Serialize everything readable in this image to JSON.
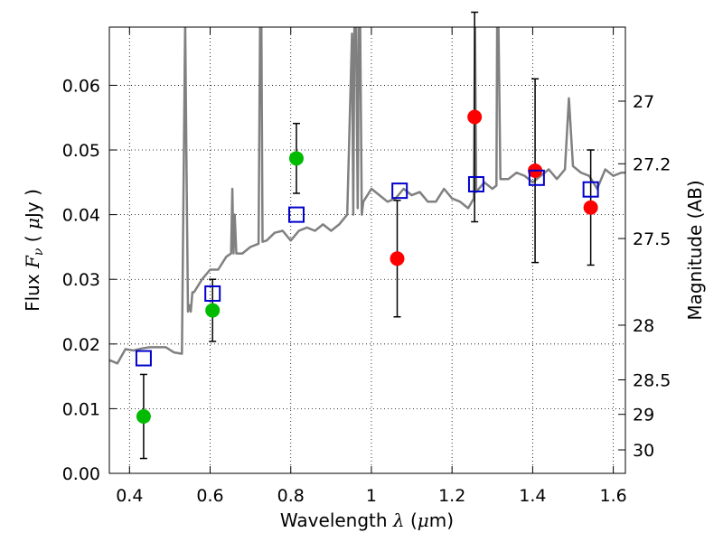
{
  "chart_data": {
    "type": "scatter",
    "xlabel": "Wavelength  λ (μm)",
    "ylabel": "Flux  F_ν  ( μJy )",
    "ylabel_right": "Magnitude (AB)",
    "xlim": [
      0.35,
      1.63
    ],
    "ylim": [
      0.0,
      0.069
    ],
    "grid": true,
    "x_ticks": [
      {
        "value": 0.4,
        "label": "0.4"
      },
      {
        "value": 0.6,
        "label": "0.6"
      },
      {
        "value": 0.8,
        "label": "0.8"
      },
      {
        "value": 1.0,
        "label": "1"
      },
      {
        "value": 1.2,
        "label": "1.2"
      },
      {
        "value": 1.4,
        "label": "1.4"
      },
      {
        "value": 1.6,
        "label": "1.6"
      }
    ],
    "y_ticks": [
      {
        "value": 0.0,
        "label": "0.00"
      },
      {
        "value": 0.01,
        "label": "0.01"
      },
      {
        "value": 0.02,
        "label": "0.02"
      },
      {
        "value": 0.03,
        "label": "0.03"
      },
      {
        "value": 0.04,
        "label": "0.04"
      },
      {
        "value": 0.05,
        "label": "0.05"
      },
      {
        "value": 0.06,
        "label": "0.06"
      }
    ],
    "right_ticks": [
      {
        "mag": 27.0,
        "label": "27"
      },
      {
        "mag": 27.2,
        "label": "27.2"
      },
      {
        "mag": 27.5,
        "label": "27.5"
      },
      {
        "mag": 28.0,
        "label": "28"
      },
      {
        "mag": 28.5,
        "label": "28.5"
      },
      {
        "mag": 29.0,
        "label": "29"
      },
      {
        "mag": 30.0,
        "label": "30"
      }
    ],
    "series": [
      {
        "kind": "observed-optical",
        "color": "#00bb00",
        "points": [
          {
            "x": 0.435,
            "y": 0.0088,
            "err": 0.0065
          },
          {
            "x": 0.606,
            "y": 0.0252,
            "err": 0.0048
          },
          {
            "x": 0.814,
            "y": 0.0487,
            "err": 0.0054
          }
        ]
      },
      {
        "kind": "observed-infrared",
        "color": "#ff0000",
        "points": [
          {
            "x": 1.064,
            "y": 0.0332,
            "err": 0.009
          },
          {
            "x": 1.256,
            "y": 0.0551,
            "err": 0.0162
          },
          {
            "x": 1.406,
            "y": 0.0468,
            "err": 0.0142
          },
          {
            "x": 1.544,
            "y": 0.0411,
            "err": 0.0089
          }
        ]
      },
      {
        "kind": "model-photometry",
        "color": "#0000cc",
        "points": [
          {
            "x": 0.435,
            "y": 0.0178
          },
          {
            "x": 0.606,
            "y": 0.0278
          },
          {
            "x": 0.814,
            "y": 0.04
          },
          {
            "x": 1.07,
            "y": 0.0437
          },
          {
            "x": 1.26,
            "y": 0.0447
          },
          {
            "x": 1.41,
            "y": 0.0457
          },
          {
            "x": 1.544,
            "y": 0.0439
          }
        ]
      },
      {
        "kind": "model-spectrum",
        "color": "#808080",
        "x": [
          0.35,
          0.37,
          0.39,
          0.41,
          0.43,
          0.45,
          0.47,
          0.49,
          0.51,
          0.53,
          0.538,
          0.541,
          0.545,
          0.549,
          0.552,
          0.556,
          0.56,
          0.58,
          0.6,
          0.62,
          0.64,
          0.652,
          0.655,
          0.658,
          0.661,
          0.665,
          0.68,
          0.7,
          0.72,
          0.724,
          0.727,
          0.73,
          0.74,
          0.76,
          0.78,
          0.8,
          0.82,
          0.84,
          0.86,
          0.88,
          0.9,
          0.92,
          0.94,
          0.952,
          0.955,
          0.958,
          0.962,
          0.966,
          0.969,
          0.972,
          0.976,
          0.98,
          1.0,
          1.02,
          1.04,
          1.06,
          1.08,
          1.1,
          1.12,
          1.14,
          1.16,
          1.18,
          1.2,
          1.22,
          1.24,
          1.254,
          1.257,
          1.26,
          1.28,
          1.3,
          1.31,
          1.312,
          1.315,
          1.32,
          1.34,
          1.36,
          1.38,
          1.4,
          1.42,
          1.44,
          1.46,
          1.48,
          1.49,
          1.5,
          1.52,
          1.54,
          1.56,
          1.58,
          1.6,
          1.62,
          1.63
        ],
        "y": [
          0.0175,
          0.017,
          0.0192,
          0.019,
          0.0193,
          0.0195,
          0.0195,
          0.0195,
          0.0187,
          0.0185,
          0.07,
          0.05,
          0.025,
          0.026,
          0.025,
          0.028,
          0.028,
          0.03,
          0.0315,
          0.0315,
          0.0335,
          0.034,
          0.044,
          0.034,
          0.04,
          0.034,
          0.034,
          0.035,
          0.0355,
          0.07,
          0.07,
          0.0358,
          0.036,
          0.0372,
          0.0375,
          0.036,
          0.0375,
          0.038,
          0.0375,
          0.0385,
          0.0375,
          0.0385,
          0.04,
          0.068,
          0.04,
          0.07,
          0.07,
          0.041,
          0.07,
          0.07,
          0.04,
          0.042,
          0.044,
          0.043,
          0.042,
          0.0425,
          0.044,
          0.043,
          0.0435,
          0.042,
          0.042,
          0.044,
          0.0425,
          0.042,
          0.041,
          0.0425,
          0.07,
          0.0435,
          0.045,
          0.044,
          0.0445,
          0.07,
          0.07,
          0.0455,
          0.0455,
          0.0465,
          0.046,
          0.045,
          0.046,
          0.047,
          0.0455,
          0.047,
          0.058,
          0.0475,
          0.0465,
          0.046,
          0.044,
          0.047,
          0.046,
          0.0465,
          0.0465
        ]
      }
    ]
  }
}
